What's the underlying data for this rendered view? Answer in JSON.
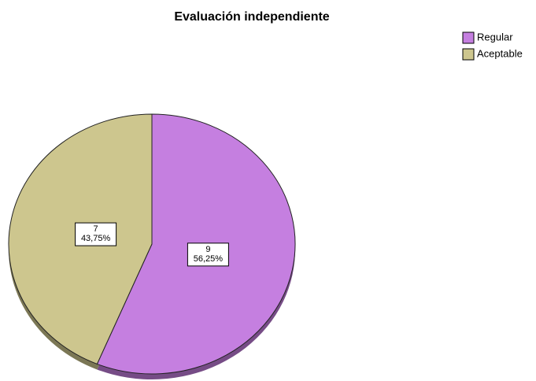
{
  "chart_data": {
    "type": "pie",
    "title": "Evaluación independiente",
    "categories": [
      "Regular",
      "Aceptable"
    ],
    "values": [
      9,
      7
    ],
    "percentages": [
      56.25,
      43.75
    ],
    "percentage_labels": [
      "56,25%",
      "43,75%"
    ],
    "colors": [
      "#c57fe0",
      "#cdc68e"
    ],
    "legend": "top-right"
  }
}
